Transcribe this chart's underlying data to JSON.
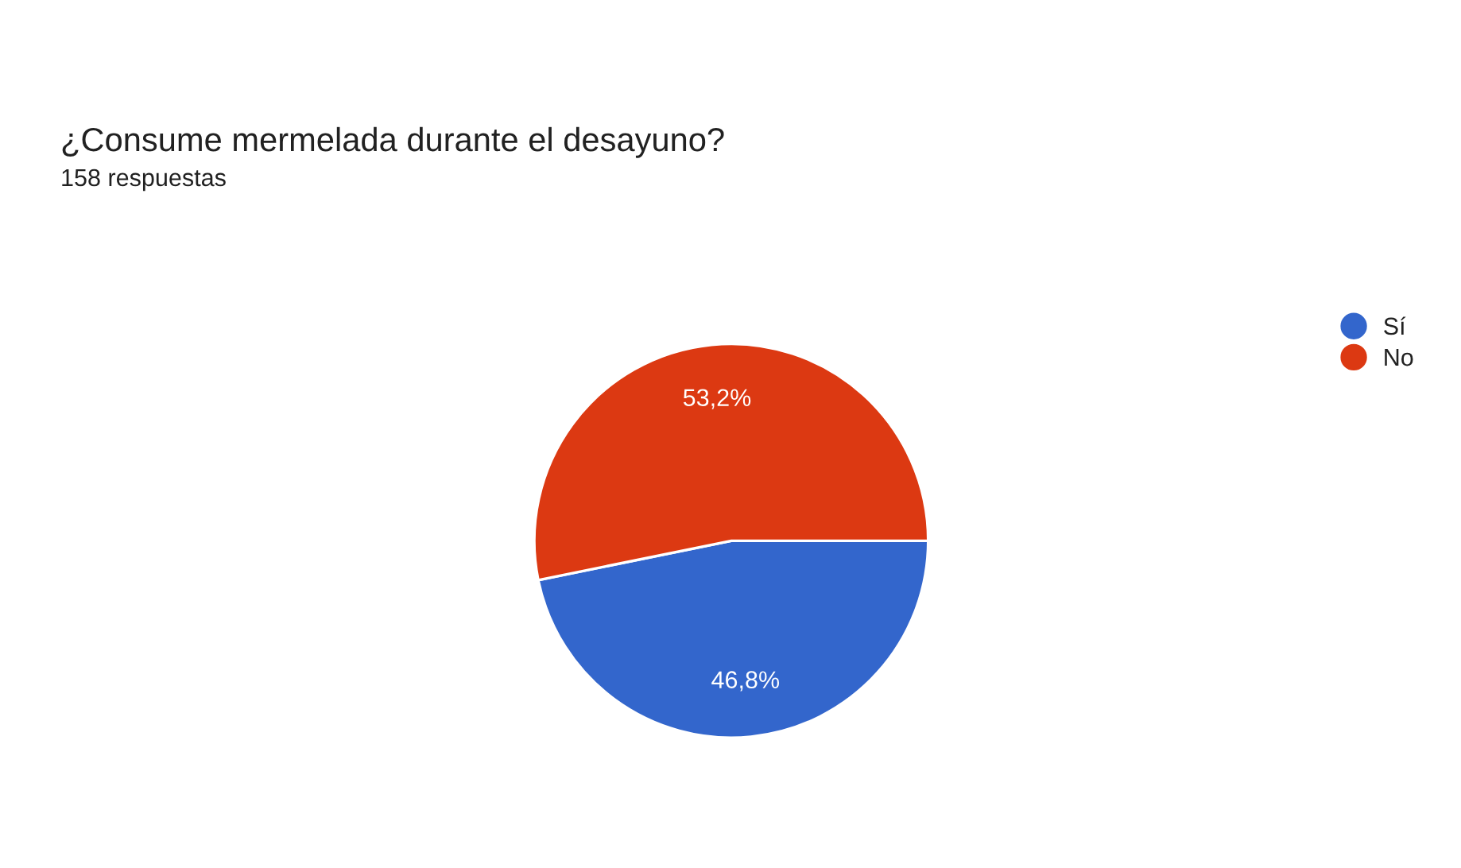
{
  "chart_data": {
    "type": "pie",
    "title": "¿Consume mermelada durante el desayuno?",
    "subtitle": "158 respuestas",
    "categories": [
      "Sí",
      "No"
    ],
    "values": [
      46.8,
      53.2
    ],
    "colors": [
      "#3366cc",
      "#dc3912"
    ],
    "value_labels": [
      "46,8%",
      "53,2%"
    ],
    "legend": "top right"
  }
}
